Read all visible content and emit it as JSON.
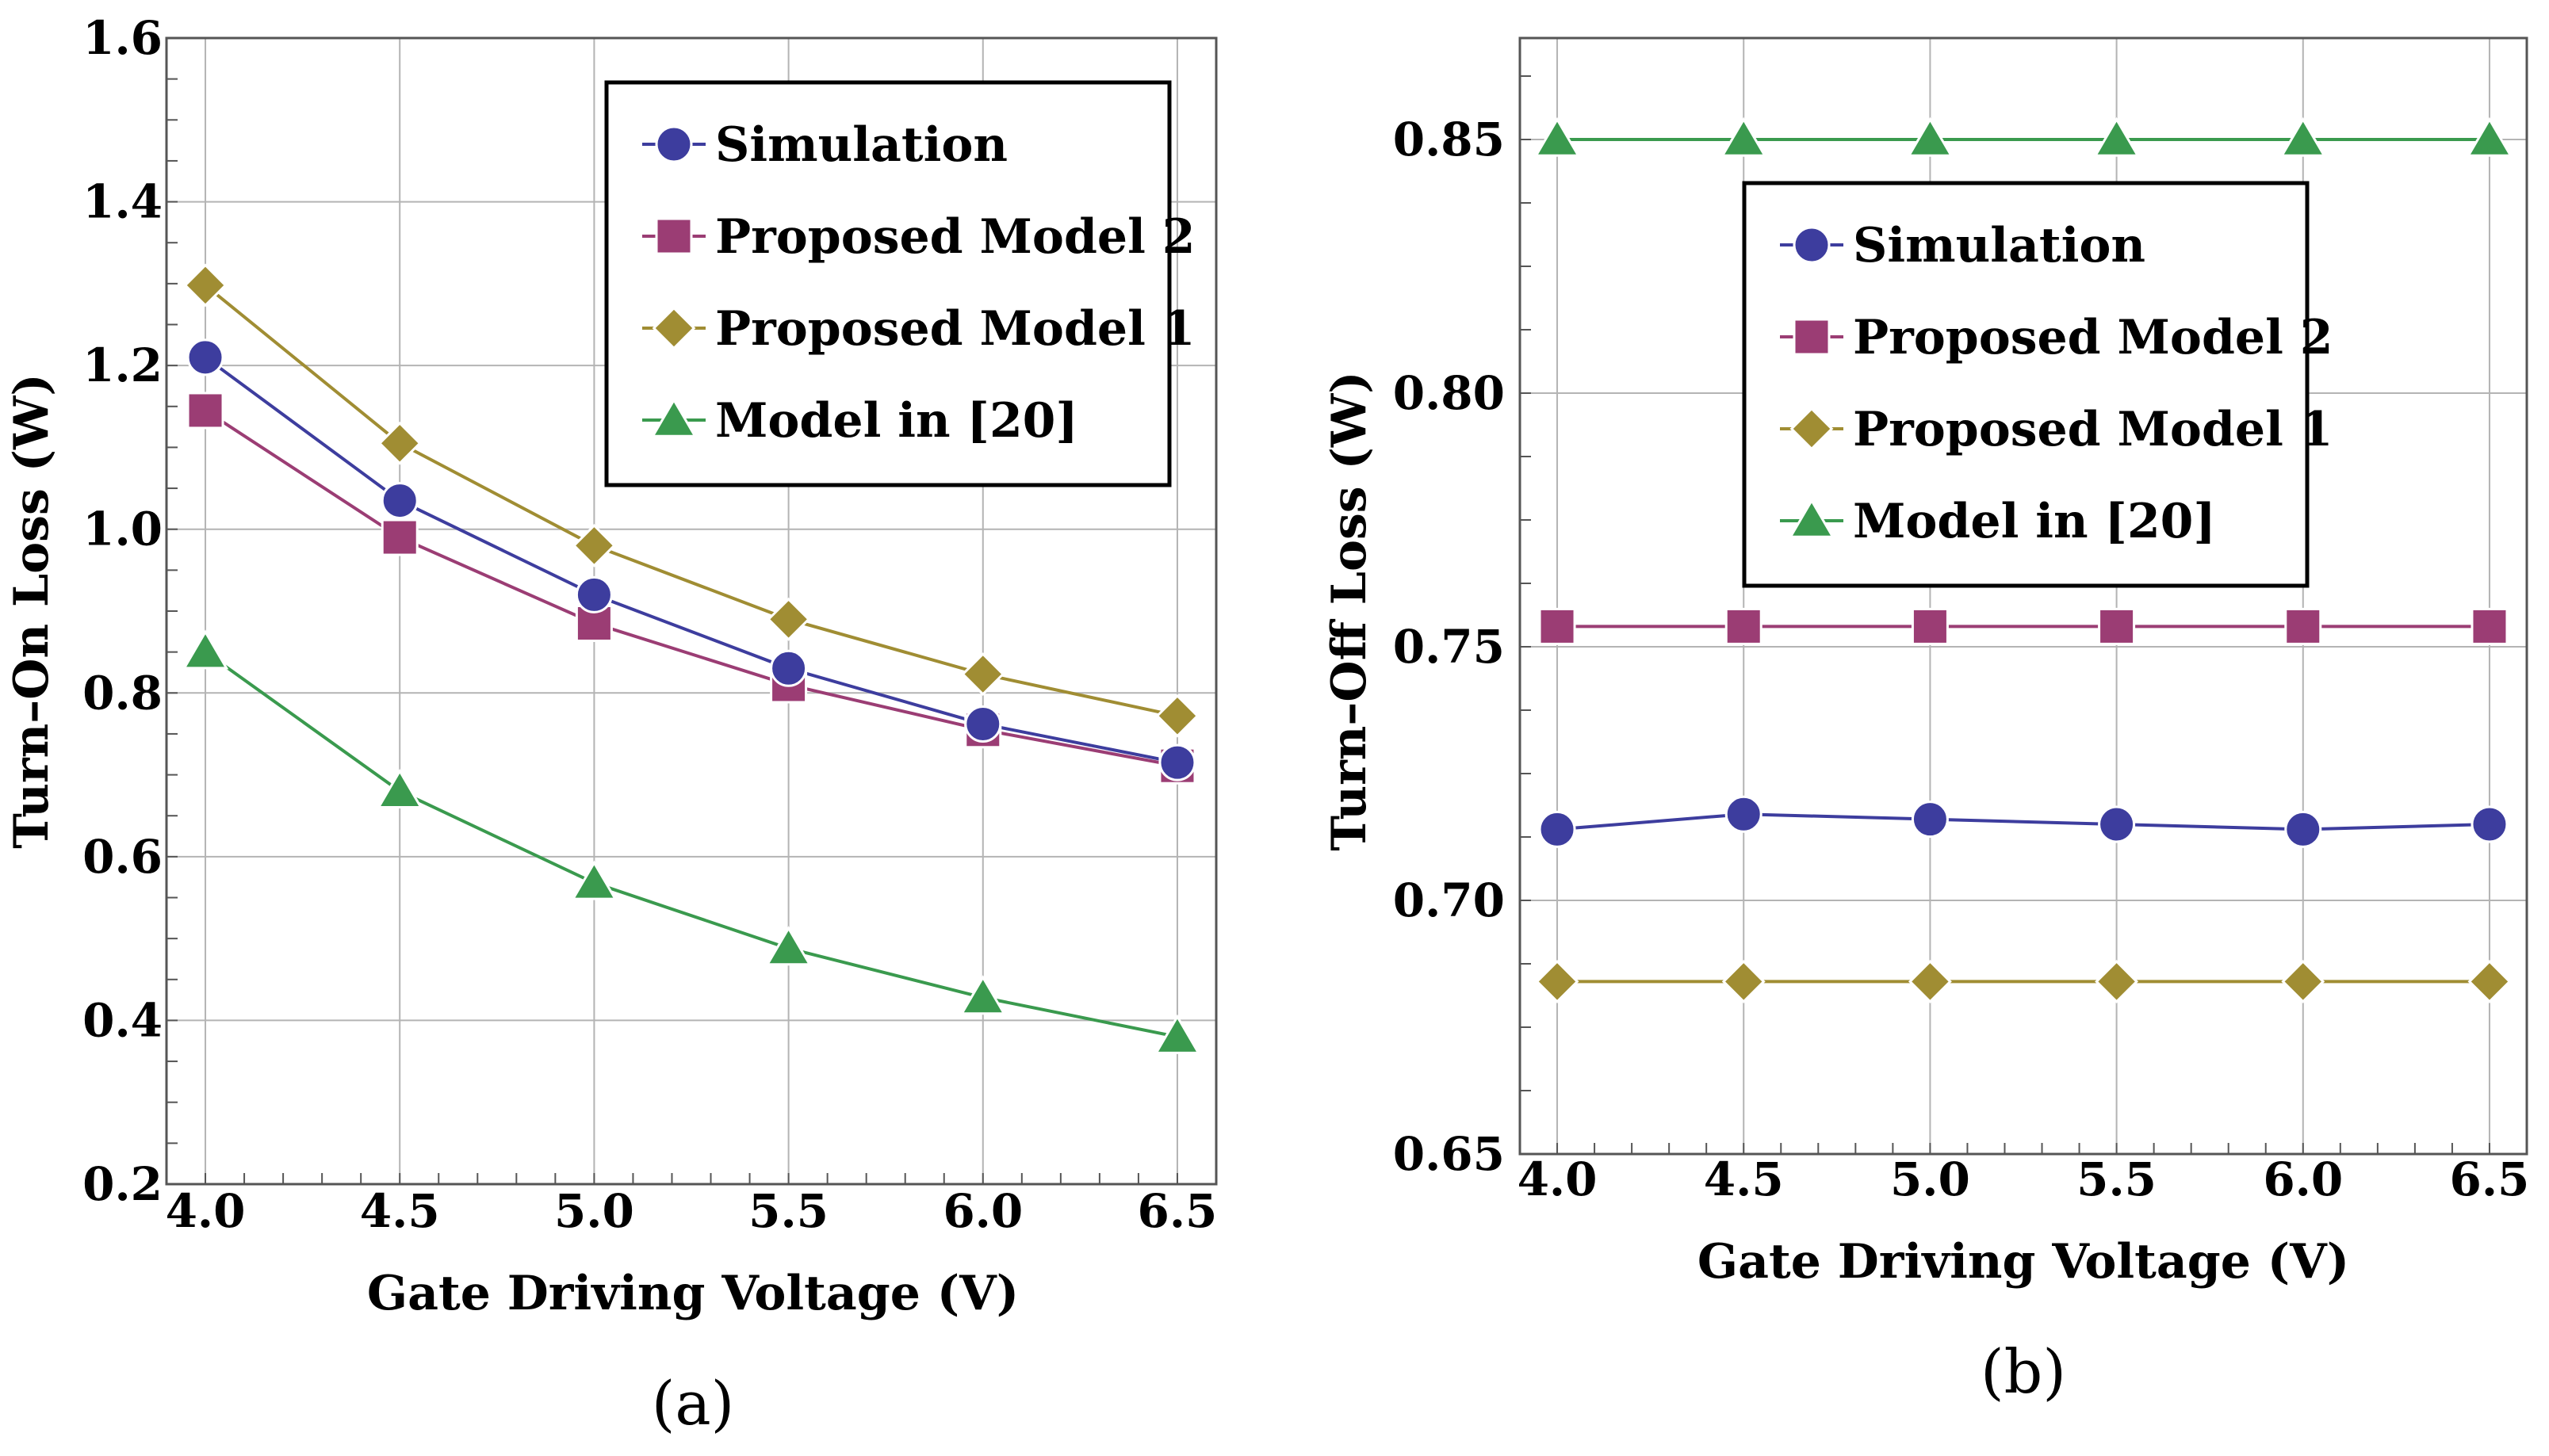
{
  "series_styles": [
    {
      "key": "simulation",
      "color": "#3d3d9e",
      "marker": "circle"
    },
    {
      "key": "model2",
      "color": "#9b3d74",
      "marker": "square"
    },
    {
      "key": "model1",
      "color": "#a08d33",
      "marker": "diamond"
    },
    {
      "key": "model20",
      "color": "#3a9a4e",
      "marker": "triangle"
    }
  ],
  "chart_data": [
    {
      "type": "line",
      "panel_label": "(a)",
      "xlabel": "Gate Driving Voltage (V)",
      "ylabel": "Turn–On Loss (W)",
      "x": [
        4.0,
        4.5,
        5.0,
        5.5,
        6.0,
        6.5
      ],
      "xticks": [
        "4.0",
        "4.5",
        "5.0",
        "5.5",
        "6.0",
        "6.5"
      ],
      "xlim": [
        3.9,
        6.6
      ],
      "ylim": [
        0.2,
        1.6
      ],
      "yticks": [
        "0.2",
        "0.4",
        "0.6",
        "0.8",
        "1.0",
        "1.2",
        "1.4",
        "1.6"
      ],
      "legend_position": "top-right",
      "series": [
        {
          "name": "Simulation",
          "values": [
            1.21,
            1.035,
            0.92,
            0.83,
            0.762,
            0.715
          ]
        },
        {
          "name": "Proposed Model 2",
          "values": [
            1.145,
            0.99,
            0.885,
            0.81,
            0.755,
            0.711
          ]
        },
        {
          "name": "Proposed Model 1",
          "values": [
            1.298,
            1.105,
            0.98,
            0.89,
            0.823,
            0.772
          ]
        },
        {
          "name": "Model in [20]",
          "values": [
            0.85,
            0.68,
            0.568,
            0.488,
            0.428,
            0.38
          ]
        }
      ]
    },
    {
      "type": "line",
      "panel_label": "(b)",
      "xlabel": "Gate Driving Voltage (V)",
      "ylabel": "Turn–Off Loss (W)",
      "x": [
        4.0,
        4.5,
        5.0,
        5.5,
        6.0,
        6.5
      ],
      "xticks": [
        "4.0",
        "4.5",
        "5.0",
        "5.5",
        "6.0",
        "6.5"
      ],
      "xlim": [
        3.9,
        6.6
      ],
      "ylim": [
        0.65,
        0.87
      ],
      "yticks": [
        "0.65",
        "0.70",
        "0.75",
        "0.80",
        "0.85"
      ],
      "legend_position": "upper-center",
      "series": [
        {
          "name": "Simulation",
          "values": [
            0.714,
            0.717,
            0.716,
            0.715,
            0.714,
            0.715
          ]
        },
        {
          "name": "Proposed Model 2",
          "values": [
            0.754,
            0.754,
            0.754,
            0.754,
            0.754,
            0.754
          ]
        },
        {
          "name": "Proposed Model 1",
          "values": [
            0.684,
            0.684,
            0.684,
            0.684,
            0.684,
            0.684
          ]
        },
        {
          "name": "Model in [20]",
          "values": [
            0.85,
            0.85,
            0.85,
            0.85,
            0.85,
            0.85
          ]
        }
      ]
    }
  ]
}
